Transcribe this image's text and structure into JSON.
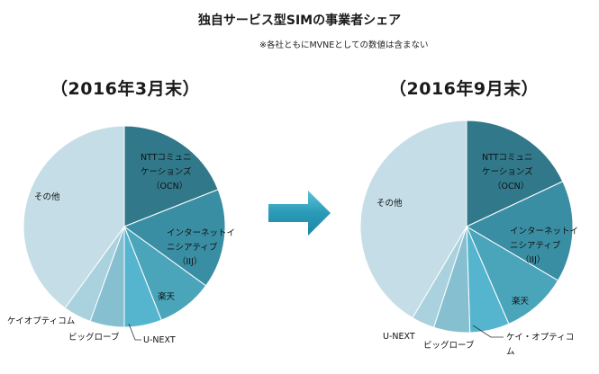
{
  "title": "独自サービス型SIMの事業者シェア",
  "note": "※各社ともにMVNEとしての数値は含まない",
  "chart_data": [
    {
      "type": "pie",
      "title": "（2016年3月末）",
      "labels": [
        "NTTコミュニケーションズ（OCN）",
        "インターネットイニシアティブ（IIJ）",
        "楽天",
        "U-NEXT",
        "ビッグローブ",
        "ケイ・オプティコム",
        "その他"
      ],
      "label_lines": [
        [
          "NTTコミュニ",
          "ケーションズ",
          "（OCN）"
        ],
        [
          "インターネットイ",
          "ニシアティブ",
          "（IIJ）"
        ],
        [
          "楽天"
        ],
        [
          "U-NEXT"
        ],
        [
          "ビッグローブ"
        ],
        [
          "ケイオプティコム"
        ],
        [
          "その他"
        ]
      ],
      "values": [
        19,
        16,
        9,
        6,
        5.5,
        4.5,
        40
      ],
      "colors": [
        "#31798a",
        "#3a8ea3",
        "#4ba5ba",
        "#55b5cf",
        "#86bfd0",
        "#a9d2de",
        "#c5dde6"
      ]
    },
    {
      "type": "pie",
      "title": "（2016年9月末）",
      "labels": [
        "NTTコミュニケーションズ（OCN）",
        "インターネットイニシアティブ（IIJ）",
        "楽天",
        "ケイ・オプティコム",
        "ビッグローブ",
        "U-NEXT",
        "その他"
      ],
      "label_lines": [
        [
          "NTTコミュニ",
          "ケーションズ",
          "（OCN）"
        ],
        [
          "インターネットイ",
          "ニシアティブ",
          "（IIJ）"
        ],
        [
          "楽天"
        ],
        [
          "ケイ・オプティコ",
          "ム"
        ],
        [
          "ビッグローブ"
        ],
        [
          "U-NEXT"
        ],
        [
          "その他"
        ]
      ],
      "values": [
        18,
        15.5,
        10,
        6,
        5.5,
        3.5,
        41.5
      ],
      "colors": [
        "#31798a",
        "#3a8ea3",
        "#4ba5ba",
        "#55b5cf",
        "#86bfd0",
        "#a9d2de",
        "#c5dde6"
      ]
    }
  ]
}
